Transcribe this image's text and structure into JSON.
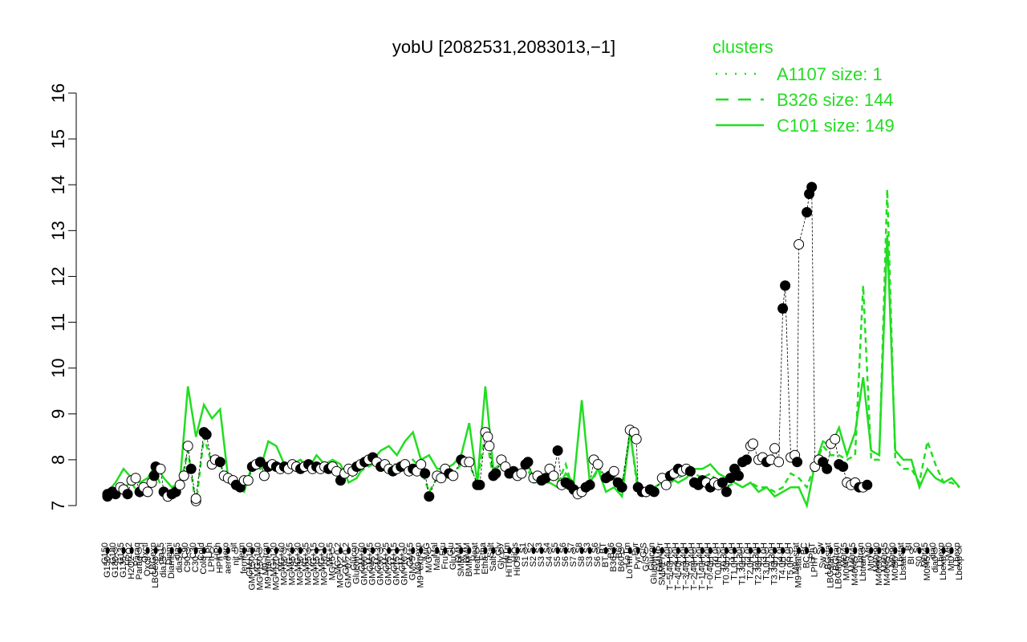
{
  "chart_data": {
    "type": "line",
    "title": "yobU [2082531,2083013,−1]",
    "ylim": [
      7,
      16
    ],
    "yticks": [
      7,
      8,
      9,
      10,
      11,
      12,
      13,
      14,
      15,
      16
    ],
    "grid": false,
    "legend": {
      "title": "clusters",
      "placement": "top-right",
      "color": "#22dd22",
      "entries": [
        {
          "label": "A1107 size: 1",
          "style": "dotted"
        },
        {
          "label": "B326 size: 144",
          "style": "dashed"
        },
        {
          "label": "C101 size: 149",
          "style": "solid"
        }
      ]
    },
    "x_tick_labels": [
      "G150",
      "G180",
      "G135",
      "H2O2",
      "Paraq",
      "Oxctl",
      "LBGexp",
      "dia15",
      "Diami",
      "dia5",
      "C90",
      "C30",
      "Cold",
      "LPh",
      "HPh",
      "aero",
      "nit",
      "ferm",
      "GM+150",
      "MG+150",
      "M9−tran",
      "MG+120",
      "MG+60",
      "MG+45",
      "MG+30",
      "MG+25",
      "MG+15",
      "MG+10",
      "MG+5",
      "MG−0.2",
      "GM−0.2",
      "Glucon",
      "GM+60",
      "GM+45",
      "GM+30",
      "GM+25",
      "GM+15",
      "GM+10",
      "GM+5",
      "M9−exp",
      "M/G",
      "Mal",
      "Fru",
      "Glu",
      "SMM",
      "BMM",
      "Heat",
      "Etha",
      "Salt",
      "Gly",
      "HiTm",
      "HiOs",
      "S1",
      "S2",
      "S3",
      "S4",
      "S5",
      "S6",
      "S7",
      "S8",
      "S3",
      "S6",
      "BT",
      "B36",
      "B60",
      "LoTm",
      "Pyr",
      "G/S",
      "Glucon",
      "SMMPr",
      "T−5.40H",
      "T−4.40H",
      "T−3.40H",
      "T−2.40H",
      "T−1.40H",
      "T−0.40H",
      "T0.0H",
      "T0.30H",
      "T1.0H",
      "T1.30H",
      "T2.0H",
      "T2.30H",
      "T3.0H",
      "T3.30H",
      "T4.0H",
      "T5.0H",
      "M9−stat",
      "BC",
      "LPhT",
      "Sw",
      "LBGstat",
      "LBGtran",
      "M0t45",
      "M40t45",
      "Lbtran",
      "Mt0",
      "M40t90",
      "M40t45",
      "M0t90",
      "Lbstat",
      "BI",
      "S0",
      "M0t45",
      "dia0",
      "Lbexp",
      "Mt0",
      "Lbexp"
    ],
    "series": [
      {
        "style": "solid",
        "color": "#22dd22",
        "values": [
          7.3,
          7.5,
          7.8,
          7.6,
          7.5,
          7.6,
          7.9,
          7.6,
          7.4,
          7.5,
          9.6,
          8.5,
          9.2,
          8.9,
          9.1,
          7.6,
          7.4,
          7.3,
          7.9,
          7.8,
          8.4,
          8.3,
          7.9,
          7.9,
          8.0,
          7.8,
          8.1,
          7.9,
          8.0,
          7.9,
          7.5,
          7.6,
          7.9,
          8.0,
          8.2,
          8.3,
          8.1,
          8.4,
          8.6,
          8.0,
          8.1,
          7.8,
          7.8,
          7.9,
          8.1,
          8.8,
          7.5,
          9.6,
          7.8,
          7.9,
          7.7,
          7.6,
          8.0,
          7.6,
          7.5,
          7.5,
          7.4,
          7.7,
          7.5,
          9.3,
          7.5,
          7.8,
          7.3,
          7.4,
          7.2,
          8.6,
          7.4,
          7.2,
          7.4,
          7.5,
          7.6,
          7.5,
          7.6,
          7.8,
          7.8,
          7.9,
          7.7,
          7.6,
          7.5,
          7.4,
          7.5,
          7.3,
          7.4,
          7.2,
          7.3,
          7.4,
          7.4,
          7.0,
          7.9,
          8.4,
          8.3,
          8.7,
          8.1,
          8.6,
          9.8,
          8.2,
          8.1,
          12.9,
          8.2,
          8.0,
          8.0,
          7.4,
          7.8,
          7.6,
          7.5,
          7.6,
          7.4
        ]
      },
      {
        "style": "dashed",
        "color": "#22dd22",
        "values": [
          7.2,
          7.3,
          7.4,
          7.5,
          7.2,
          7.4,
          7.7,
          7.3,
          7.3,
          7.4,
          8.2,
          7.0,
          8.5,
          7.9,
          7.9,
          7.5,
          7.5,
          7.4,
          7.8,
          7.8,
          7.9,
          7.8,
          7.9,
          7.8,
          7.9,
          7.8,
          7.9,
          7.8,
          7.9,
          7.8,
          7.6,
          7.7,
          7.8,
          7.9,
          8.0,
          7.9,
          7.9,
          7.9,
          8.0,
          7.8,
          7.3,
          7.6,
          7.6,
          7.7,
          7.9,
          7.9,
          7.5,
          8.6,
          7.6,
          7.9,
          7.7,
          7.6,
          7.9,
          7.5,
          7.5,
          7.6,
          7.5,
          7.9,
          7.3,
          7.4,
          7.4,
          7.8,
          7.6,
          7.6,
          7.4,
          8.6,
          7.3,
          7.3,
          7.3,
          7.4,
          7.5,
          7.6,
          7.7,
          7.7,
          7.6,
          7.7,
          7.5,
          7.4,
          7.5,
          7.4,
          7.5,
          7.4,
          7.4,
          7.3,
          7.4,
          7.7,
          7.6,
          7.4,
          7.9,
          8.3,
          8.1,
          8.1,
          8.0,
          8.1,
          11.8,
          8.0,
          8.0,
          13.9,
          8.0,
          7.8,
          7.8,
          7.5,
          8.4,
          7.9,
          7.5,
          7.5,
          7.4
        ]
      }
    ],
    "points": [
      {
        "x": 0,
        "y": 7.25,
        "f": 1
      },
      {
        "x": 0,
        "y": 7.2,
        "f": 1
      },
      {
        "x": 0.6,
        "y": 7.3,
        "f": 1
      },
      {
        "x": 1,
        "y": 7.25,
        "f": 1
      },
      {
        "x": 1.6,
        "y": 7.4,
        "f": 0
      },
      {
        "x": 2,
        "y": 7.35,
        "f": 0
      },
      {
        "x": 2.5,
        "y": 7.25,
        "f": 1
      },
      {
        "x": 3,
        "y": 7.55,
        "f": 0
      },
      {
        "x": 3.5,
        "y": 7.6,
        "f": 0
      },
      {
        "x": 4,
        "y": 7.3,
        "f": 1
      },
      {
        "x": 4.5,
        "y": 7.4,
        "f": 0
      },
      {
        "x": 5,
        "y": 7.3,
        "f": 0
      },
      {
        "x": 5.5,
        "y": 7.5,
        "f": 0
      },
      {
        "x": 5.8,
        "y": 7.65,
        "f": 1
      },
      {
        "x": 6,
        "y": 7.85,
        "f": 1
      },
      {
        "x": 6.6,
        "y": 7.8,
        "f": 0
      },
      {
        "x": 7,
        "y": 7.3,
        "f": 1
      },
      {
        "x": 7.5,
        "y": 7.2,
        "f": 0
      },
      {
        "x": 8,
        "y": 7.25,
        "f": 1
      },
      {
        "x": 8.5,
        "y": 7.3,
        "f": 1
      },
      {
        "x": 9,
        "y": 7.45,
        "f": 0
      },
      {
        "x": 9.5,
        "y": 7.65,
        "f": 0
      },
      {
        "x": 10,
        "y": 8.3,
        "f": 0
      },
      {
        "x": 10.4,
        "y": 7.8,
        "f": 1
      },
      {
        "x": 11,
        "y": 7.1,
        "f": 0
      },
      {
        "x": 11,
        "y": 7.15,
        "f": 0
      },
      {
        "x": 12,
        "y": 8.6,
        "f": 1
      },
      {
        "x": 12.3,
        "y": 8.55,
        "f": 1
      },
      {
        "x": 13,
        "y": 7.9,
        "f": 0
      },
      {
        "x": 13.4,
        "y": 8.0,
        "f": 0
      },
      {
        "x": 14,
        "y": 7.95,
        "f": 1
      },
      {
        "x": 14.5,
        "y": 7.65,
        "f": 0
      },
      {
        "x": 15,
        "y": 7.6,
        "f": 0
      },
      {
        "x": 15.6,
        "y": 7.55,
        "f": 0
      },
      {
        "x": 16,
        "y": 7.45,
        "f": 1
      },
      {
        "x": 16.5,
        "y": 7.4,
        "f": 1
      },
      {
        "x": 17,
        "y": 7.55,
        "f": 0
      },
      {
        "x": 17.5,
        "y": 7.55,
        "f": 0
      },
      {
        "x": 18,
        "y": 7.85,
        "f": 1
      },
      {
        "x": 18.5,
        "y": 7.9,
        "f": 0
      },
      {
        "x": 19,
        "y": 7.95,
        "f": 1
      },
      {
        "x": 19.5,
        "y": 7.65,
        "f": 0
      },
      {
        "x": 20,
        "y": 7.85,
        "f": 1
      },
      {
        "x": 20.5,
        "y": 7.9,
        "f": 0
      },
      {
        "x": 21,
        "y": 7.85,
        "f": 1
      },
      {
        "x": 21.5,
        "y": 7.8,
        "f": 0
      },
      {
        "x": 22,
        "y": 7.85,
        "f": 1
      },
      {
        "x": 22.5,
        "y": 7.8,
        "f": 0
      },
      {
        "x": 23,
        "y": 7.9,
        "f": 0
      },
      {
        "x": 23.5,
        "y": 7.85,
        "f": 0
      },
      {
        "x": 24,
        "y": 7.8,
        "f": 1
      },
      {
        "x": 24.5,
        "y": 7.85,
        "f": 0
      },
      {
        "x": 25,
        "y": 7.9,
        "f": 1
      },
      {
        "x": 25.5,
        "y": 7.8,
        "f": 0
      },
      {
        "x": 26,
        "y": 7.85,
        "f": 1
      },
      {
        "x": 26.5,
        "y": 7.8,
        "f": 0
      },
      {
        "x": 27,
        "y": 7.85,
        "f": 0
      },
      {
        "x": 27.5,
        "y": 7.8,
        "f": 1
      },
      {
        "x": 28,
        "y": 7.85,
        "f": 0
      },
      {
        "x": 28.5,
        "y": 7.75,
        "f": 0
      },
      {
        "x": 29,
        "y": 7.55,
        "f": 1
      },
      {
        "x": 29.5,
        "y": 7.7,
        "f": 0
      },
      {
        "x": 30,
        "y": 7.8,
        "f": 0
      },
      {
        "x": 30.5,
        "y": 7.75,
        "f": 0
      },
      {
        "x": 31,
        "y": 7.85,
        "f": 1
      },
      {
        "x": 31.5,
        "y": 7.9,
        "f": 0
      },
      {
        "x": 32,
        "y": 7.95,
        "f": 1
      },
      {
        "x": 32.5,
        "y": 8.0,
        "f": 0
      },
      {
        "x": 33,
        "y": 8.05,
        "f": 1
      },
      {
        "x": 33.5,
        "y": 7.95,
        "f": 0
      },
      {
        "x": 34,
        "y": 7.85,
        "f": 1
      },
      {
        "x": 34.5,
        "y": 7.9,
        "f": 0
      },
      {
        "x": 35,
        "y": 7.8,
        "f": 0
      },
      {
        "x": 35.5,
        "y": 7.75,
        "f": 1
      },
      {
        "x": 36,
        "y": 7.8,
        "f": 0
      },
      {
        "x": 36.5,
        "y": 7.85,
        "f": 1
      },
      {
        "x": 37,
        "y": 7.9,
        "f": 0
      },
      {
        "x": 37.5,
        "y": 7.75,
        "f": 0
      },
      {
        "x": 38,
        "y": 7.8,
        "f": 1
      },
      {
        "x": 38.5,
        "y": 7.75,
        "f": 0
      },
      {
        "x": 39,
        "y": 7.9,
        "f": 0
      },
      {
        "x": 39.5,
        "y": 7.7,
        "f": 1
      },
      {
        "x": 40,
        "y": 7.2,
        "f": 1
      },
      {
        "x": 41,
        "y": 7.65,
        "f": 0
      },
      {
        "x": 41.5,
        "y": 7.6,
        "f": 0
      },
      {
        "x": 42,
        "y": 7.8,
        "f": 0
      },
      {
        "x": 42.5,
        "y": 7.7,
        "f": 1
      },
      {
        "x": 43,
        "y": 7.65,
        "f": 0
      },
      {
        "x": 44,
        "y": 8.0,
        "f": 1
      },
      {
        "x": 44.5,
        "y": 7.95,
        "f": 0
      },
      {
        "x": 45,
        "y": 7.95,
        "f": 0
      },
      {
        "x": 46,
        "y": 7.45,
        "f": 1
      },
      {
        "x": 46.3,
        "y": 7.45,
        "f": 1
      },
      {
        "x": 47,
        "y": 8.6,
        "f": 0
      },
      {
        "x": 47.3,
        "y": 8.5,
        "f": 0
      },
      {
        "x": 47.5,
        "y": 8.3,
        "f": 0
      },
      {
        "x": 48,
        "y": 7.65,
        "f": 1
      },
      {
        "x": 48.3,
        "y": 7.7,
        "f": 1
      },
      {
        "x": 49,
        "y": 8.0,
        "f": 0
      },
      {
        "x": 49.5,
        "y": 7.85,
        "f": 0
      },
      {
        "x": 50,
        "y": 7.7,
        "f": 1
      },
      {
        "x": 50.5,
        "y": 7.75,
        "f": 1
      },
      {
        "x": 51,
        "y": 7.65,
        "f": 0
      },
      {
        "x": 51.5,
        "y": 7.7,
        "f": 0
      },
      {
        "x": 52,
        "y": 7.9,
        "f": 1
      },
      {
        "x": 52.3,
        "y": 7.95,
        "f": 1
      },
      {
        "x": 53,
        "y": 7.6,
        "f": 0
      },
      {
        "x": 53.5,
        "y": 7.65,
        "f": 0
      },
      {
        "x": 54,
        "y": 7.55,
        "f": 1
      },
      {
        "x": 54.5,
        "y": 7.6,
        "f": 1
      },
      {
        "x": 55,
        "y": 7.8,
        "f": 0
      },
      {
        "x": 55.5,
        "y": 7.65,
        "f": 0
      },
      {
        "x": 56,
        "y": 8.2,
        "f": 1
      },
      {
        "x": 56.5,
        "y": 7.45,
        "f": 0
      },
      {
        "x": 57,
        "y": 7.5,
        "f": 1
      },
      {
        "x": 57.5,
        "y": 7.45,
        "f": 1
      },
      {
        "x": 58,
        "y": 7.35,
        "f": 1
      },
      {
        "x": 58.5,
        "y": 7.25,
        "f": 0
      },
      {
        "x": 59,
        "y": 7.3,
        "f": 0
      },
      {
        "x": 59.5,
        "y": 7.4,
        "f": 1
      },
      {
        "x": 60,
        "y": 7.45,
        "f": 1
      },
      {
        "x": 60.5,
        "y": 8.0,
        "f": 0
      },
      {
        "x": 61,
        "y": 7.9,
        "f": 0
      },
      {
        "x": 62,
        "y": 7.6,
        "f": 1
      },
      {
        "x": 62.5,
        "y": 7.65,
        "f": 1
      },
      {
        "x": 63,
        "y": 7.75,
        "f": 0
      },
      {
        "x": 63.5,
        "y": 7.5,
        "f": 1
      },
      {
        "x": 64,
        "y": 7.4,
        "f": 1
      },
      {
        "x": 65,
        "y": 8.65,
        "f": 0
      },
      {
        "x": 65.5,
        "y": 8.6,
        "f": 0
      },
      {
        "x": 65.8,
        "y": 8.45,
        "f": 0
      },
      {
        "x": 66,
        "y": 7.4,
        "f": 1
      },
      {
        "x": 66.5,
        "y": 7.3,
        "f": 1
      },
      {
        "x": 67,
        "y": 7.3,
        "f": 0
      },
      {
        "x": 67.5,
        "y": 7.35,
        "f": 1
      },
      {
        "x": 68,
        "y": 7.3,
        "f": 1
      },
      {
        "x": 69,
        "y": 7.6,
        "f": 0
      },
      {
        "x": 69.5,
        "y": 7.45,
        "f": 0
      },
      {
        "x": 70,
        "y": 7.65,
        "f": 1
      },
      {
        "x": 70.5,
        "y": 7.7,
        "f": 0
      },
      {
        "x": 71,
        "y": 7.8,
        "f": 1
      },
      {
        "x": 71.5,
        "y": 7.75,
        "f": 0
      },
      {
        "x": 72,
        "y": 7.8,
        "f": 0
      },
      {
        "x": 72.5,
        "y": 7.75,
        "f": 1
      },
      {
        "x": 73,
        "y": 7.5,
        "f": 1
      },
      {
        "x": 73.5,
        "y": 7.45,
        "f": 1
      },
      {
        "x": 74,
        "y": 7.55,
        "f": 1
      },
      {
        "x": 74.5,
        "y": 7.5,
        "f": 0
      },
      {
        "x": 75,
        "y": 7.4,
        "f": 1
      },
      {
        "x": 75.5,
        "y": 7.5,
        "f": 0
      },
      {
        "x": 76,
        "y": 7.45,
        "f": 0
      },
      {
        "x": 76.5,
        "y": 7.5,
        "f": 1
      },
      {
        "x": 77,
        "y": 7.3,
        "f": 1
      },
      {
        "x": 77.5,
        "y": 7.6,
        "f": 1
      },
      {
        "x": 78,
        "y": 7.8,
        "f": 1
      },
      {
        "x": 78.5,
        "y": 7.65,
        "f": 1
      },
      {
        "x": 79,
        "y": 7.95,
        "f": 1
      },
      {
        "x": 79.5,
        "y": 8.0,
        "f": 1
      },
      {
        "x": 80,
        "y": 8.3,
        "f": 0
      },
      {
        "x": 80.3,
        "y": 8.35,
        "f": 0
      },
      {
        "x": 81,
        "y": 8.0,
        "f": 0
      },
      {
        "x": 81.5,
        "y": 8.05,
        "f": 0
      },
      {
        "x": 82,
        "y": 7.95,
        "f": 1
      },
      {
        "x": 82.5,
        "y": 8.0,
        "f": 0
      },
      {
        "x": 83,
        "y": 8.25,
        "f": 0
      },
      {
        "x": 83.5,
        "y": 7.95,
        "f": 0
      },
      {
        "x": 84,
        "y": 11.3,
        "f": 1
      },
      {
        "x": 84.3,
        "y": 11.8,
        "f": 1
      },
      {
        "x": 85,
        "y": 8.05,
        "f": 0
      },
      {
        "x": 85.5,
        "y": 8.1,
        "f": 0
      },
      {
        "x": 85.8,
        "y": 7.95,
        "f": 1
      },
      {
        "x": 86,
        "y": 12.7,
        "f": 0
      },
      {
        "x": 87,
        "y": 13.4,
        "f": 1
      },
      {
        "x": 87.3,
        "y": 13.8,
        "f": 1
      },
      {
        "x": 87.6,
        "y": 13.95,
        "f": 1
      },
      {
        "x": 88,
        "y": 7.85,
        "f": 0
      },
      {
        "x": 88.5,
        "y": 8.0,
        "f": 0
      },
      {
        "x": 89,
        "y": 7.95,
        "f": 1
      },
      {
        "x": 89.5,
        "y": 7.8,
        "f": 1
      },
      {
        "x": 90,
        "y": 8.35,
        "f": 0
      },
      {
        "x": 90.5,
        "y": 8.45,
        "f": 0
      },
      {
        "x": 91,
        "y": 7.9,
        "f": 1
      },
      {
        "x": 91.5,
        "y": 7.85,
        "f": 1
      },
      {
        "x": 92,
        "y": 7.5,
        "f": 0
      },
      {
        "x": 92.5,
        "y": 7.45,
        "f": 0
      },
      {
        "x": 93,
        "y": 7.5,
        "f": 0
      },
      {
        "x": 93.5,
        "y": 7.4,
        "f": 1
      },
      {
        "x": 94,
        "y": 7.4,
        "f": 0
      },
      {
        "x": 94.5,
        "y": 7.45,
        "f": 1
      }
    ]
  }
}
